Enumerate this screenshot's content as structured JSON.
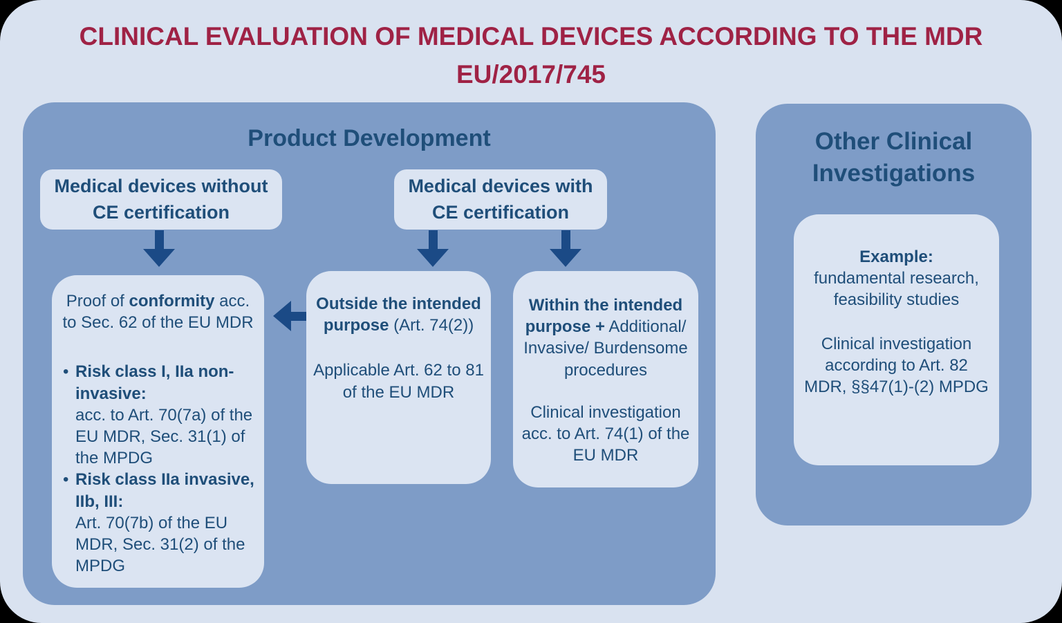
{
  "title": {
    "line1": "CLINICAL EVALUATION OF MEDICAL DEVICES ACCORDING TO THE MDR",
    "line2": "EU/2017/745"
  },
  "colors": {
    "title_red": "#9f2245",
    "panel_blue": "#7e9cc7",
    "box_light": "#dbe4f2",
    "text_navy": "#1f4e79",
    "arrow_navy": "#1b4a86",
    "page_background": "#d9e2f0"
  },
  "product_development": {
    "header": "Product Development",
    "top_boxes": [
      {
        "label": "Medical devices without CE certification"
      },
      {
        "label": "Medical devices with CE certification"
      }
    ],
    "conformity_box": {
      "intro_prefix": "Proof of ",
      "intro_bold": "conformity",
      "intro_suffix": " acc. to Sec. 62 of the EU MDR",
      "bullets": [
        {
          "bold": "Risk class I, IIa non-invasive:",
          "text": "acc. to Art. 70(7a) of the EU MDR, Sec. 31(1) of the MPDG"
        },
        {
          "bold": "Risk class IIa invasive, IIb, III:",
          "text": "Art. 70(7b) of the EU MDR, Sec. 31(2) of the MPDG"
        }
      ]
    },
    "outside_box": {
      "bold": "Outside the intended purpose",
      "normal": " (Art. 74(2))",
      "para2": "Applicable Art. 62 to 81 of the EU MDR"
    },
    "within_box": {
      "bold": "Within the intended purpose +",
      "normal": " Additional/ Invasive/ Burdensome procedures",
      "para2": "Clinical investigation acc. to Art. 74(1) of the EU MDR"
    }
  },
  "other_clinical": {
    "header": "Other Clinical Investigations",
    "example_box": {
      "label": "Example:",
      "examples": "fundamental research, feasibility studies",
      "para2": "Clinical investigation according to Art. 82 MDR, §§47(1)-(2) MPDG"
    }
  }
}
